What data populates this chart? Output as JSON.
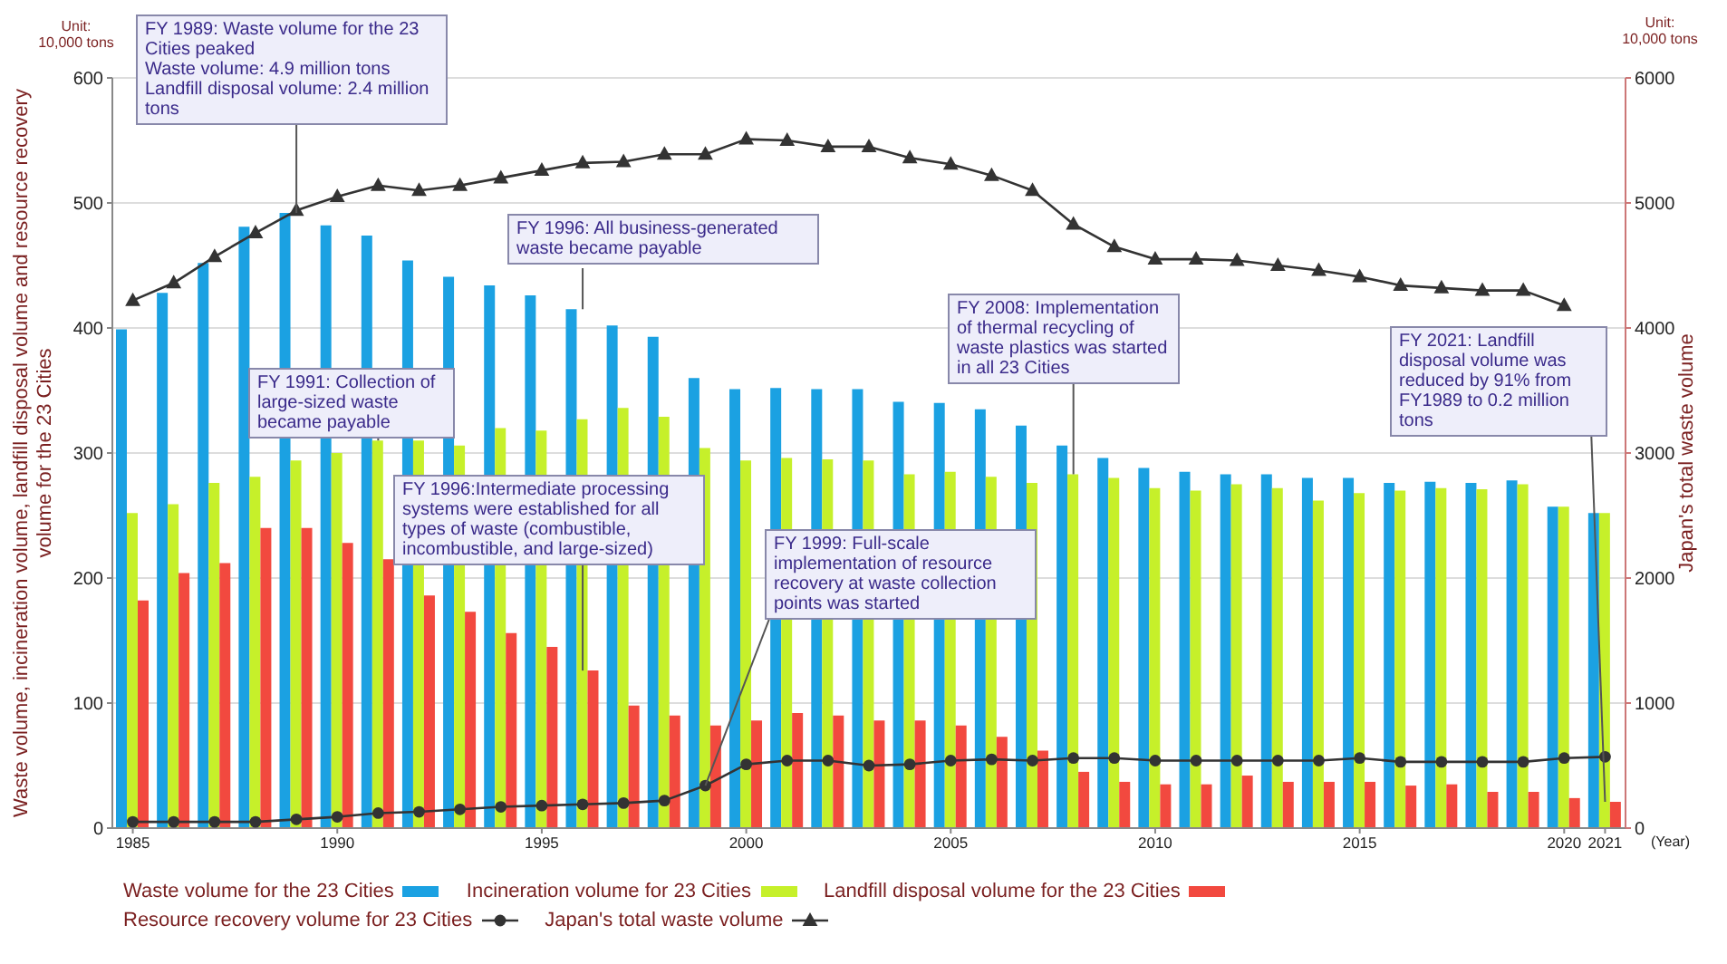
{
  "chart_data": {
    "type": "bar",
    "xlabel": "(Year)",
    "ylabel": "Waste volume, incineration volume, landfill disposal volume and resource recovery volume for the 23 Cities",
    "y2label": "Japan's total waste volume",
    "x": [
      1985,
      1986,
      1987,
      1988,
      1989,
      1990,
      1991,
      1992,
      1993,
      1994,
      1995,
      1996,
      1997,
      1998,
      1999,
      2000,
      2001,
      2002,
      2003,
      2004,
      2005,
      2006,
      2007,
      2008,
      2009,
      2010,
      2011,
      2012,
      2013,
      2014,
      2015,
      2016,
      2017,
      2018,
      2019,
      2020,
      2021
    ],
    "xlim": [
      1984.5,
      2021.5
    ],
    "xticks": [
      1985,
      1990,
      1995,
      2000,
      2005,
      2010,
      2015,
      2020,
      2021
    ],
    "ylim": [
      0,
      600
    ],
    "yticks": [
      0,
      100,
      200,
      300,
      400,
      500,
      600
    ],
    "y2lim": [
      0,
      6000
    ],
    "y2ticks": [
      0,
      1000,
      2000,
      3000,
      4000,
      5000,
      6000
    ],
    "grid": "y",
    "legend": "bottom",
    "series": [
      {
        "name": "Waste volume for the 23 Cities",
        "color": "#1ba1e2",
        "values": [
          399,
          428,
          452,
          481,
          492,
          482,
          474,
          454,
          441,
          434,
          426,
          415,
          402,
          393,
          360,
          351,
          352,
          351,
          351,
          341,
          340,
          335,
          322,
          306,
          296,
          288,
          285,
          283,
          283,
          280,
          280,
          276,
          277,
          276,
          278,
          257,
          252
        ]
      },
      {
        "name": "Incineration volume for 23 Cities",
        "color": "#c6f02a",
        "values": [
          252,
          259,
          276,
          281,
          294,
          300,
          310,
          310,
          306,
          320,
          318,
          327,
          336,
          329,
          304,
          294,
          296,
          295,
          294,
          283,
          285,
          281,
          276,
          283,
          280,
          272,
          270,
          275,
          272,
          262,
          268,
          270,
          272,
          271,
          275,
          257,
          252
        ]
      },
      {
        "name": "Landfill disposal volume for the 23 Cities",
        "color": "#f2493f",
        "values": [
          182,
          204,
          212,
          240,
          240,
          228,
          215,
          186,
          173,
          156,
          145,
          126,
          98,
          90,
          82,
          86,
          92,
          90,
          86,
          86,
          82,
          73,
          62,
          45,
          37,
          35,
          35,
          42,
          37,
          37,
          37,
          34,
          35,
          29,
          29,
          24,
          21
        ]
      },
      {
        "name": "Resource recovery volume for 23 Cities",
        "type": "line",
        "marker": "circle",
        "color": "#333333",
        "values": [
          5,
          5,
          5,
          5,
          7,
          9,
          12,
          13,
          15,
          17,
          18,
          19,
          20,
          22,
          34,
          51,
          54,
          54,
          50,
          51,
          54,
          55,
          54,
          56,
          56,
          54,
          54,
          54,
          54,
          54,
          56,
          53,
          53,
          53,
          53,
          56,
          57
        ]
      },
      {
        "name": "Japan's total waste volume",
        "type": "line",
        "marker": "triangle",
        "axis": "y2",
        "color": "#333333",
        "values": [
          4220,
          4360,
          4570,
          4760,
          4940,
          5050,
          5140,
          5100,
          5140,
          5200,
          5260,
          5320,
          5330,
          5390,
          5390,
          5510,
          5500,
          5450,
          5450,
          5360,
          5310,
          5220,
          5100,
          4830,
          4650,
          4550,
          4550,
          4540,
          4500,
          4460,
          4410,
          4340,
          4320,
          4300,
          4300,
          4180,
          null
        ]
      }
    ],
    "annotations": [
      {
        "text": "FY 1989: Waste volume for the 23 Cities peaked\nWaste volume: 4.9 million tons\nLandfill disposal volume: 2.4 million tons",
        "x": 1989,
        "y": 492
      },
      {
        "text": "FY 1996: All business-generated waste became payable",
        "x": 1996,
        "y": 415
      },
      {
        "text": "FY 1991: Collection of large-sized waste became payable",
        "x": 1991,
        "y": 310
      },
      {
        "text": "FY 1996:Intermediate processing systems were established for all types of waste (combustible, incombustible, and large-sized)",
        "x": 1996,
        "y": 126
      },
      {
        "text": "FY 1999: Full-scale implementation of resource recovery at waste collection points was started",
        "x": 1999,
        "y": 34
      },
      {
        "text": "FY 2008: Implementation of thermal recycling of waste plastics was started in all 23 Cities",
        "x": 2008,
        "y": 283
      },
      {
        "text": "FY 2021: Landfill disposal volume was reduced by 91% from FY1989 to 0.2 million tons",
        "x": 2021,
        "y": 21
      },
      "Unit:\n10,000 tons",
      "Unit:\n10,000 tons"
    ]
  }
}
